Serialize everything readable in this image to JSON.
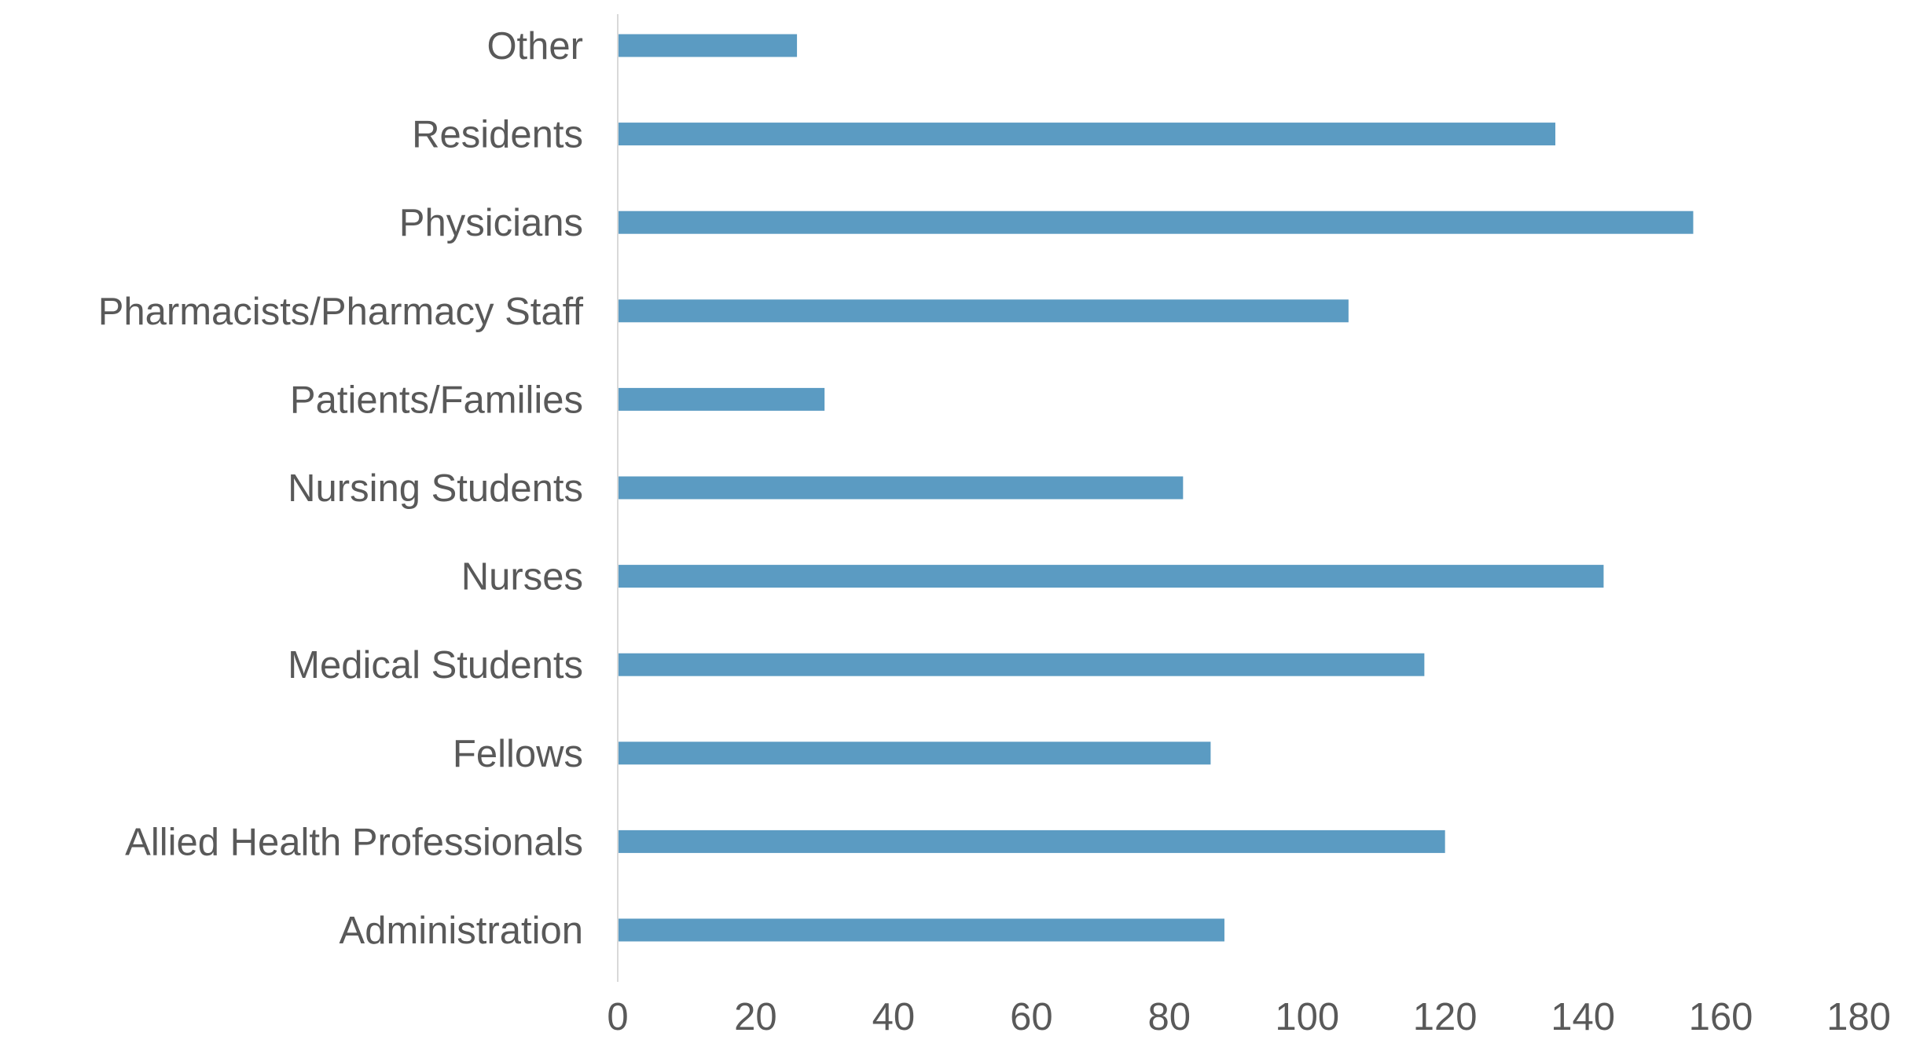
{
  "chart_data": {
    "type": "bar",
    "orientation": "horizontal",
    "title": "",
    "xlabel": "",
    "ylabel": "",
    "categories": [
      "Administration",
      "Allied Health Professionals",
      "Fellows",
      "Medical Students",
      "Nurses",
      "Nursing Students",
      "Patients/Families",
      "Pharmacists/Pharmacy Staff",
      "Physicians",
      "Residents",
      "Other"
    ],
    "values": [
      88,
      120,
      86,
      117,
      143,
      82,
      30,
      106,
      156,
      136,
      26
    ],
    "xlim": [
      0,
      180
    ],
    "xticks": [
      "0",
      "20",
      "40",
      "60",
      "80",
      "100",
      "120",
      "140",
      "160",
      "180"
    ],
    "grid": false,
    "legend": "none",
    "colors": {
      "bar": "#5b9bc2",
      "axis_line": "#d9d9d9",
      "text": "#595959"
    }
  }
}
